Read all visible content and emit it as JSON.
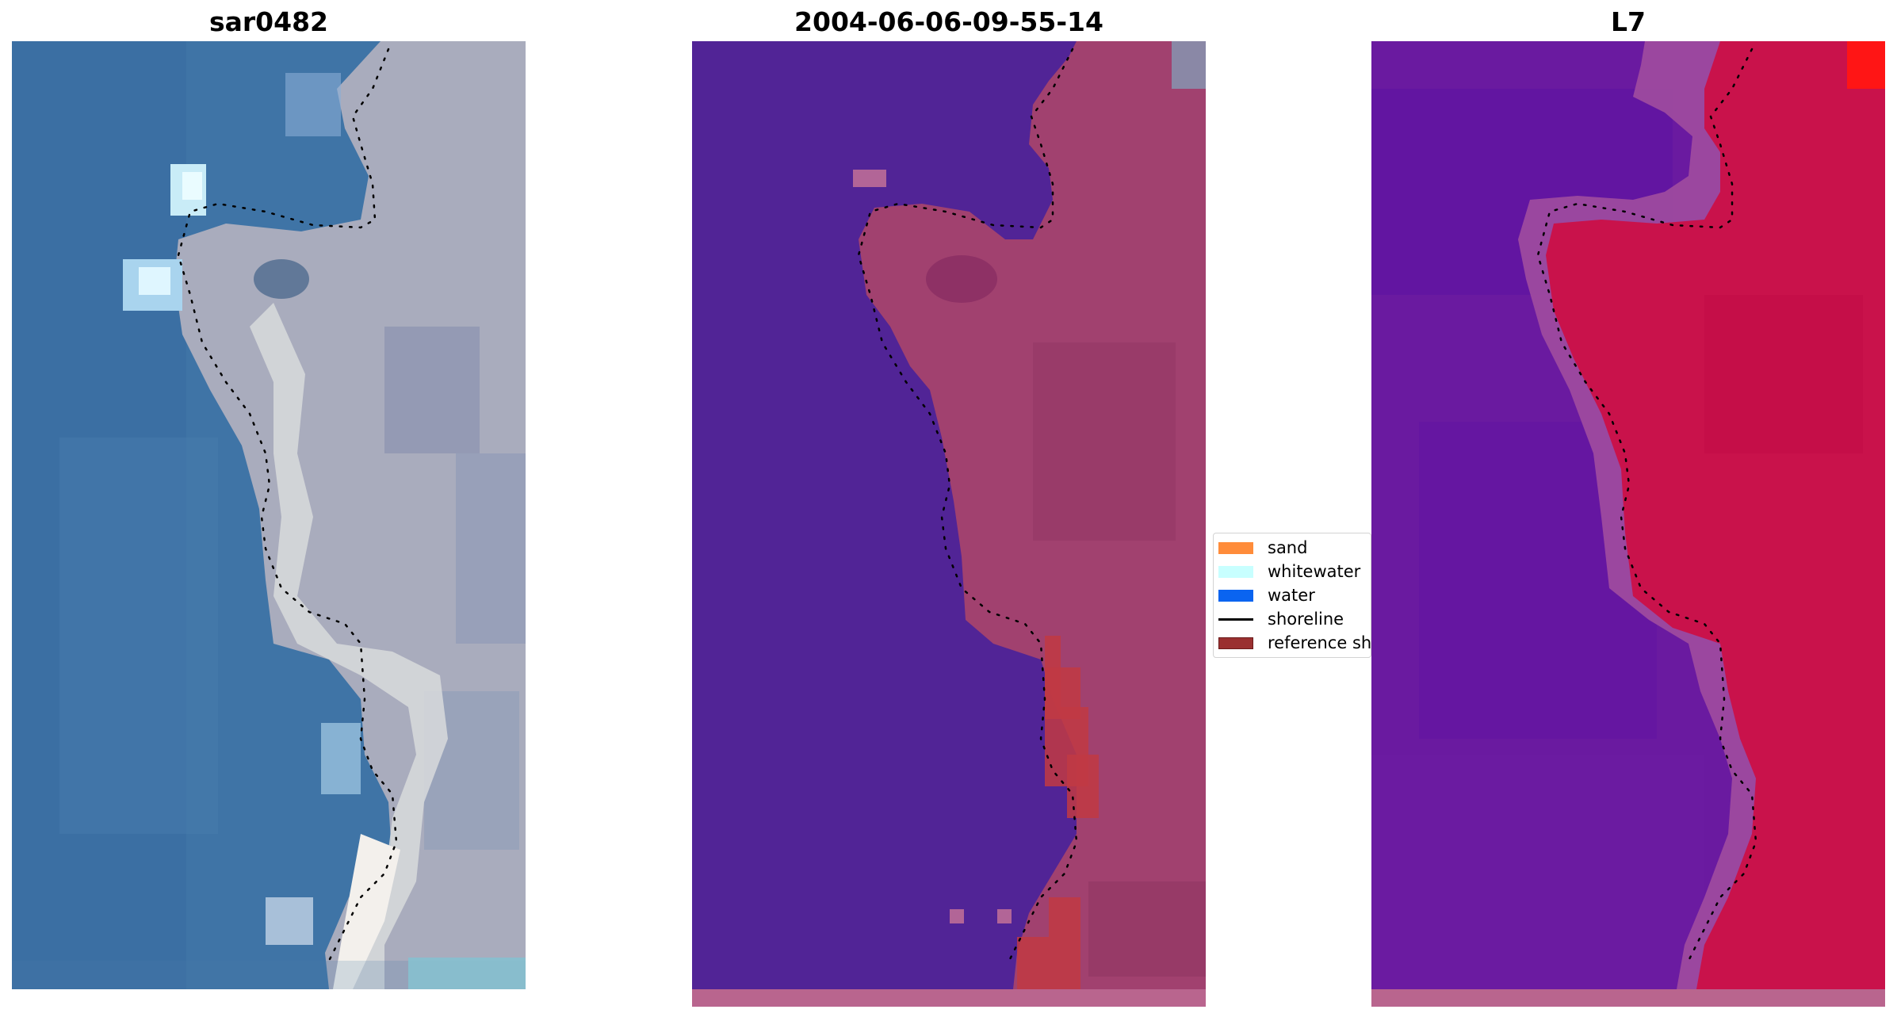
{
  "panels": [
    {
      "title": "sar0482"
    },
    {
      "title": "2004-06-06-09-55-14"
    },
    {
      "title": "L7"
    }
  ],
  "legend": {
    "items": [
      {
        "label": "sand",
        "color": "#ff8c3a",
        "kind": "patch"
      },
      {
        "label": "whitewater",
        "color": "#c8ffff",
        "kind": "patch"
      },
      {
        "label": "water",
        "color": "#0a64f0",
        "kind": "patch"
      },
      {
        "label": "shoreline",
        "color": "#000000",
        "kind": "line"
      },
      {
        "label": "reference shoreline",
        "color": "#9a3030",
        "kind": "patch"
      }
    ]
  },
  "colors": {
    "rgb_water": "#3f74a6",
    "rgb_land": "#a9acbd",
    "rgb_beach": "#d8dadc",
    "class_water": "#512496",
    "class_land": "#a1416f",
    "class_red": "#c13a43",
    "mndwi_water": "#6a1aa0",
    "mndwi_land": "#c9124b",
    "strip": "#b9658e"
  }
}
